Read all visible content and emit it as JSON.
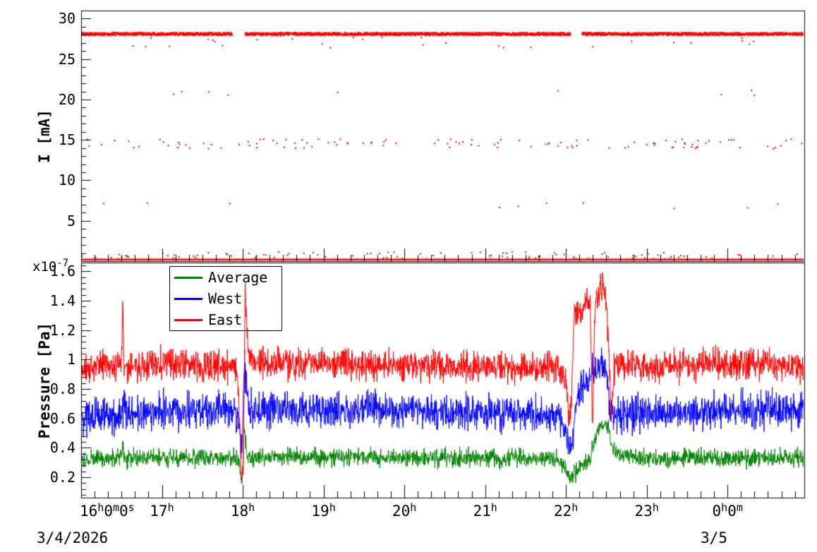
{
  "figure": {
    "dates": {
      "left": "3/4/2026",
      "right": "3/5"
    },
    "scale_label": {
      "prefix": "x10",
      "exponent": "-7"
    }
  },
  "xaxis": {
    "xlim": [
      16,
      24.95
    ],
    "major_ticks": [
      16,
      17,
      18,
      19,
      20,
      21,
      22,
      23,
      24
    ],
    "labels": [
      "16h0m0s",
      "17h",
      "18h",
      "19h",
      "20h",
      "21h",
      "22h",
      "23h",
      "0h0m"
    ],
    "minor_per_major": 6
  },
  "chart_data": [
    {
      "type": "scatter",
      "title": "",
      "xlabel": "",
      "ylabel": "I [mA]",
      "ylim": [
        0,
        31
      ],
      "ytick_values": [
        5,
        10,
        15,
        20,
        25,
        30
      ],
      "ytick_labels": [
        "5",
        "10",
        "15",
        "20",
        "25",
        "30"
      ],
      "marker_color": "#ff0000",
      "baseline_line": {
        "y": 0.2,
        "color": "#ff0000",
        "width": 2.5
      },
      "gaps": [
        [
          17.87,
          18.03
        ],
        [
          22.06,
          22.2
        ]
      ],
      "bands": [
        {
          "name": "beam-current-main",
          "y": 28.1,
          "spread": 0.18,
          "prob": 1.0,
          "step": 0.003,
          "outlier_prob": 0.012,
          "outlier_range": [
            26.4,
            27.7
          ],
          "respect_gaps": true
        },
        {
          "name": "band-15mA",
          "y": 14.5,
          "spread": 0.6,
          "prob": 0.055,
          "step": 0.004,
          "respect_gaps": false
        },
        {
          "name": "band-low",
          "y": 0.65,
          "spread": 0.5,
          "prob": 0.05,
          "step": 0.004,
          "respect_gaps": false
        },
        {
          "name": "band-21mA-sparse",
          "y": 20.8,
          "spread": 0.4,
          "prob": 0.004,
          "step": 0.004,
          "respect_gaps": false
        },
        {
          "name": "band-7mA-sparse",
          "y": 6.8,
          "spread": 0.4,
          "prob": 0.004,
          "step": 0.004,
          "respect_gaps": false
        }
      ]
    },
    {
      "type": "line",
      "title": "",
      "xlabel": "",
      "ylabel": "Pressure [Pa]",
      "ylim": [
        0.06,
        1.66
      ],
      "y_scale_factor": "1e-7",
      "ytick_values": [
        0.2,
        0.4,
        0.6,
        0.8,
        1.0,
        1.2,
        1.4,
        1.6
      ],
      "ytick_labels": [
        "0.2",
        "0.4",
        "0.6",
        "0.8",
        "1",
        "1.2",
        "1.4",
        "1.6"
      ],
      "legend_position": "top-left-inside",
      "series": [
        {
          "name": "Average",
          "color": "#008000",
          "noise": 0.03,
          "points": [
            [
              16,
              0.32
            ],
            [
              16.5,
              0.33
            ],
            [
              16.515,
              0.44
            ],
            [
              16.53,
              0.33
            ],
            [
              17,
              0.33
            ],
            [
              17.9,
              0.33
            ],
            [
              17.96,
              0.28
            ],
            [
              17.99,
              0.15
            ],
            [
              18.02,
              0.55
            ],
            [
              18.05,
              0.35
            ],
            [
              18.1,
              0.33
            ],
            [
              19,
              0.34
            ],
            [
              20,
              0.33
            ],
            [
              21,
              0.33
            ],
            [
              21.9,
              0.32
            ],
            [
              22,
              0.26
            ],
            [
              22.04,
              0.2
            ],
            [
              22.1,
              0.22
            ],
            [
              22.2,
              0.28
            ],
            [
              22.3,
              0.33
            ],
            [
              22.38,
              0.5
            ],
            [
              22.45,
              0.55
            ],
            [
              22.52,
              0.56
            ],
            [
              22.56,
              0.45
            ],
            [
              22.62,
              0.35
            ],
            [
              23,
              0.33
            ],
            [
              24,
              0.33
            ],
            [
              24.95,
              0.33
            ]
          ]
        },
        {
          "name": "West",
          "color": "#0000ff",
          "noise": 0.06,
          "points": [
            [
              16,
              0.6
            ],
            [
              16.5,
              0.63
            ],
            [
              17,
              0.65
            ],
            [
              17.9,
              0.66
            ],
            [
              17.96,
              0.55
            ],
            [
              17.99,
              0.35
            ],
            [
              18.02,
              1.0
            ],
            [
              18.045,
              0.75
            ],
            [
              18.08,
              0.66
            ],
            [
              19,
              0.66
            ],
            [
              20,
              0.65
            ],
            [
              21,
              0.64
            ],
            [
              21.9,
              0.62
            ],
            [
              22,
              0.5
            ],
            [
              22.04,
              0.4
            ],
            [
              22.08,
              0.45
            ],
            [
              22.12,
              0.72
            ],
            [
              22.2,
              0.8
            ],
            [
              22.3,
              0.88
            ],
            [
              22.4,
              0.95
            ],
            [
              22.45,
              1.0
            ],
            [
              22.5,
              0.9
            ],
            [
              22.54,
              0.7
            ],
            [
              22.58,
              0.6
            ],
            [
              22.65,
              0.63
            ],
            [
              23,
              0.64
            ],
            [
              24,
              0.65
            ],
            [
              24.95,
              0.66
            ]
          ]
        },
        {
          "name": "East",
          "color": "#ff0000",
          "noise": 0.05,
          "points": [
            [
              16,
              0.93
            ],
            [
              16.3,
              0.96
            ],
            [
              16.5,
              0.95
            ],
            [
              16.515,
              1.42
            ],
            [
              16.53,
              0.95
            ],
            [
              17,
              0.97
            ],
            [
              17.5,
              0.96
            ],
            [
              17.93,
              0.95
            ],
            [
              17.96,
              0.6
            ],
            [
              17.985,
              0.17
            ],
            [
              18.01,
              0.3
            ],
            [
              18.03,
              1.5
            ],
            [
              18.05,
              1.2
            ],
            [
              18.08,
              1.0
            ],
            [
              18.2,
              0.98
            ],
            [
              19,
              0.97
            ],
            [
              20,
              0.96
            ],
            [
              21,
              0.95
            ],
            [
              21.8,
              0.94
            ],
            [
              22,
              0.9
            ],
            [
              22.04,
              0.55
            ],
            [
              22.07,
              0.75
            ],
            [
              22.1,
              1.3
            ],
            [
              22.15,
              1.35
            ],
            [
              22.2,
              1.3
            ],
            [
              22.25,
              1.42
            ],
            [
              22.3,
              1.38
            ],
            [
              22.33,
              0.55
            ],
            [
              22.36,
              1.35
            ],
            [
              22.4,
              1.42
            ],
            [
              22.45,
              1.5
            ],
            [
              22.5,
              1.4
            ],
            [
              22.53,
              1.05
            ],
            [
              22.56,
              0.62
            ],
            [
              22.6,
              0.95
            ],
            [
              23,
              0.96
            ],
            [
              24,
              0.97
            ],
            [
              24.95,
              0.96
            ]
          ]
        }
      ]
    }
  ]
}
